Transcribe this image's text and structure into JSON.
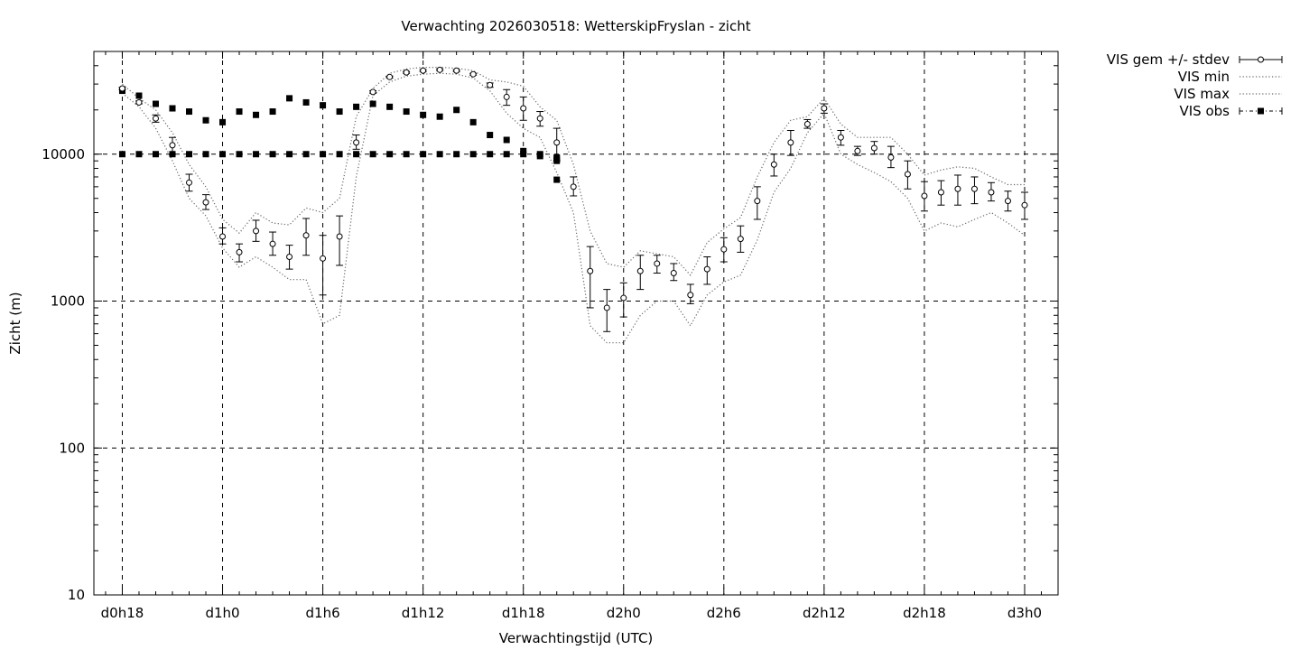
{
  "chart_data": {
    "type": "line",
    "title": "Verwachting 2026030518: WetterskipFryslan - zicht",
    "xlabel": "Verwachtingstijd (UTC)",
    "ylabel": "Zicht (m)",
    "yscale": "log",
    "ylim": [
      10,
      50000
    ],
    "xlim_hours": [
      -1.7,
      56
    ],
    "x_unit": "hours after d0h18",
    "grid": true,
    "legend_position": "outside-top-right",
    "x_ticks": [
      {
        "h": 0,
        "label": "d0h18"
      },
      {
        "h": 6,
        "label": "d1h0"
      },
      {
        "h": 12,
        "label": "d1h6"
      },
      {
        "h": 18,
        "label": "d1h12"
      },
      {
        "h": 24,
        "label": "d1h18"
      },
      {
        "h": 30,
        "label": "d2h0"
      },
      {
        "h": 36,
        "label": "d2h6"
      },
      {
        "h": 42,
        "label": "d2h12"
      },
      {
        "h": 48,
        "label": "d2h18"
      },
      {
        "h": 54,
        "label": "d3h0"
      }
    ],
    "y_ticks": [
      {
        "v": 10,
        "label": "10"
      },
      {
        "v": 100,
        "label": "100"
      },
      {
        "v": 1000,
        "label": "1000"
      },
      {
        "v": 10000,
        "label": "10000"
      }
    ],
    "legend": [
      {
        "key": "mean",
        "label": "VIS gem +/- stdev"
      },
      {
        "key": "min",
        "label": "VIS min"
      },
      {
        "key": "max",
        "label": "VIS max"
      },
      {
        "key": "obs",
        "label": "VIS obs"
      }
    ],
    "series": [
      {
        "name": "VIS gem +/- stdev",
        "x": [
          0,
          1,
          2,
          3,
          4,
          5,
          6,
          7,
          8,
          9,
          10,
          11,
          12,
          13,
          14,
          15,
          16,
          17,
          18,
          19,
          20,
          21,
          22,
          23,
          24,
          25,
          26,
          27,
          28,
          29,
          30,
          31,
          32,
          33,
          34,
          35,
          36,
          37,
          38,
          39,
          40,
          41,
          42,
          43,
          44,
          45,
          46,
          47,
          48,
          49,
          50,
          51,
          52,
          53,
          54
        ],
        "values": [
          28000,
          22500,
          17500,
          11500,
          6400,
          4700,
          2750,
          2150,
          3000,
          2450,
          2000,
          2800,
          1950,
          2750,
          12000,
          26500,
          33500,
          36000,
          37000,
          37500,
          37000,
          35000,
          29500,
          24500,
          20500,
          17500,
          12000,
          6000,
          1600,
          900,
          1050,
          1600,
          1800,
          1550,
          1100,
          1650,
          2250,
          2650,
          4800,
          8500,
          12000,
          16000,
          20500,
          13000,
          10500,
          11000,
          9500,
          7300,
          5200,
          5500,
          5800,
          5800,
          5500,
          4800,
          4500
        ],
        "lower": [
          27500,
          22000,
          16500,
          10000,
          5600,
          4200,
          2450,
          1850,
          2550,
          2050,
          1650,
          2050,
          1100,
          1750,
          10800,
          26000,
          33000,
          35500,
          36500,
          37000,
          36500,
          34500,
          28500,
          21500,
          17000,
          15500,
          9000,
          5200,
          900,
          620,
          780,
          1200,
          1550,
          1380,
          960,
          1300,
          1850,
          2150,
          3600,
          7100,
          9800,
          15000,
          19000,
          11500,
          9800,
          10000,
          8100,
          5800,
          4100,
          4500,
          4500,
          4600,
          4800,
          4100,
          3600
        ],
        "upper": [
          28500,
          23000,
          18500,
          13000,
          7300,
          5300,
          3150,
          2450,
          3550,
          2950,
          2400,
          3650,
          2800,
          3800,
          13500,
          27000,
          34000,
          36500,
          37500,
          38000,
          37500,
          35500,
          30500,
          27500,
          24500,
          19500,
          15000,
          7000,
          2350,
          1200,
          1330,
          2050,
          2050,
          1800,
          1300,
          2000,
          2700,
          3250,
          6000,
          10000,
          14500,
          17200,
          22000,
          14500,
          11300,
          12200,
          11300,
          9000,
          6500,
          6600,
          7200,
          7000,
          6400,
          5600,
          5500
        ]
      },
      {
        "name": "VIS min",
        "x": [
          0,
          1,
          2,
          3,
          4,
          5,
          6,
          7,
          8,
          9,
          10,
          11,
          12,
          13,
          14,
          15,
          16,
          17,
          18,
          19,
          20,
          21,
          22,
          23,
          24,
          25,
          26,
          27,
          28,
          29,
          30,
          31,
          32,
          33,
          34,
          35,
          36,
          37,
          38,
          39,
          40,
          41,
          42,
          43,
          44,
          45,
          46,
          47,
          48,
          49,
          50,
          51,
          52,
          53,
          54
        ],
        "values": [
          26000,
          21000,
          15000,
          9000,
          5000,
          3800,
          2300,
          1700,
          2000,
          1700,
          1400,
          1400,
          700,
          800,
          7000,
          25000,
          31000,
          34000,
          35000,
          35500,
          35000,
          33000,
          27000,
          19000,
          15000,
          13000,
          7500,
          4000,
          680,
          520,
          520,
          800,
          1000,
          1000,
          680,
          1100,
          1350,
          1500,
          2600,
          5500,
          8000,
          14000,
          19000,
          10000,
          8500,
          7500,
          6500,
          5000,
          3000,
          3400,
          3200,
          3600,
          4000,
          3400,
          2800
        ]
      },
      {
        "name": "VIS max",
        "x": [
          0,
          1,
          2,
          3,
          4,
          5,
          6,
          7,
          8,
          9,
          10,
          11,
          12,
          13,
          14,
          15,
          16,
          17,
          18,
          19,
          20,
          21,
          22,
          23,
          24,
          25,
          26,
          27,
          28,
          29,
          30,
          31,
          32,
          33,
          34,
          35,
          36,
          37,
          38,
          39,
          40,
          41,
          42,
          43,
          44,
          45,
          46,
          47,
          48,
          49,
          50,
          51,
          52,
          53,
          54
        ],
        "values": [
          30000,
          24000,
          20000,
          14000,
          8500,
          6000,
          3600,
          2900,
          4000,
          3400,
          3300,
          4300,
          4000,
          5000,
          18000,
          28000,
          35500,
          38000,
          39000,
          39000,
          38500,
          37000,
          32000,
          31000,
          29000,
          21000,
          17000,
          8500,
          3000,
          1800,
          1700,
          2200,
          2100,
          2000,
          1500,
          2500,
          3100,
          3700,
          7000,
          12000,
          17000,
          18000,
          24000,
          16000,
          13000,
          13000,
          13000,
          10000,
          7200,
          7800,
          8200,
          8000,
          7000,
          6200,
          6200
        ]
      },
      {
        "name": "VIS obs",
        "x": [
          0,
          0,
          1,
          1,
          2,
          2,
          3,
          3,
          4,
          4,
          5,
          5,
          6,
          6,
          7,
          7,
          8,
          8,
          9,
          9,
          10,
          10,
          11,
          11,
          12,
          12,
          13,
          13,
          14,
          14,
          15,
          15,
          16,
          16,
          17,
          17,
          18,
          18,
          19,
          19,
          20,
          20,
          21,
          21,
          22,
          22,
          23,
          23,
          24,
          24,
          25,
          25,
          26,
          26,
          26,
          26
        ],
        "values": [
          27000,
          10000,
          25000,
          10000,
          22000,
          10000,
          20500,
          10000,
          19500,
          10000,
          17000,
          10000,
          16500,
          10000,
          19500,
          10000,
          18500,
          10000,
          19500,
          10000,
          24000,
          10000,
          22500,
          10000,
          21500,
          10000,
          19500,
          10000,
          21000,
          10000,
          22000,
          10000,
          21000,
          10000,
          19500,
          10000,
          18500,
          10000,
          18000,
          10000,
          20000,
          10000,
          16500,
          10000,
          13500,
          10000,
          12500,
          10000,
          10500,
          10000,
          10000,
          9700,
          9500,
          9000,
          9300,
          6700
        ]
      }
    ]
  }
}
